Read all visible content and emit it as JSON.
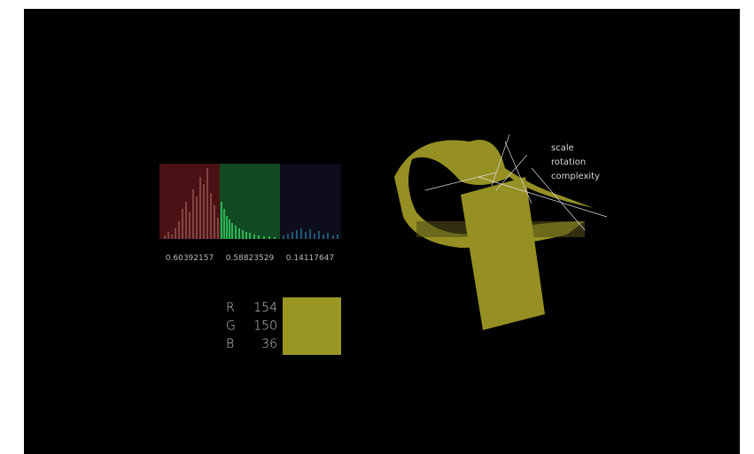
{
  "channels": [
    {
      "label": "R",
      "value": 154,
      "normalized": 0.60392157
    },
    {
      "label": "G",
      "value": 150,
      "normalized": 0.58823529
    },
    {
      "label": "B",
      "value": 36,
      "normalized": 0.14117647
    }
  ],
  "controls": [
    "scale",
    "rotation",
    "complexity"
  ]
}
